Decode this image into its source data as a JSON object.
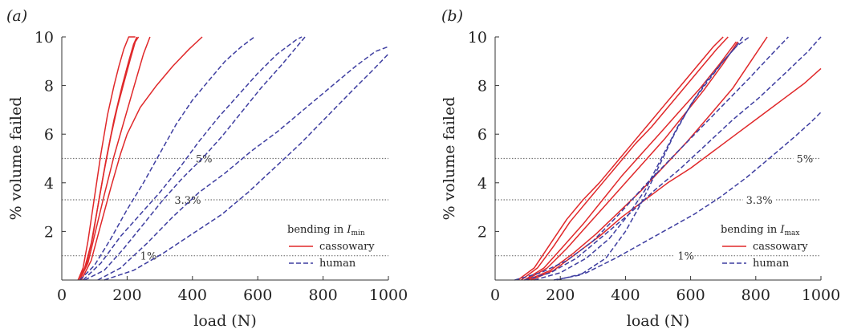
{
  "figure": {
    "panels": [
      {
        "id": "a",
        "label": "(a)"
      },
      {
        "id": "b",
        "label": "(b)"
      }
    ]
  },
  "chart_data": [
    {
      "type": "line",
      "panel": "(a)",
      "xlabel": "load (N)",
      "ylabel": "% volume failed",
      "xlim": [
        0,
        1000
      ],
      "ylim": [
        0,
        10
      ],
      "xticks": [
        "0",
        "200",
        "400",
        "600",
        "800",
        "1000"
      ],
      "yticks": [
        "2",
        "4",
        "6",
        "8",
        "10"
      ],
      "grid": false,
      "legend": {
        "title_prefix": "bending in ",
        "title_var": "I",
        "title_sub": "min",
        "placement": "bottom-right",
        "entries": [
          {
            "label": "cassowary",
            "color": "#e0282a",
            "dash": "solid"
          },
          {
            "label": "human",
            "color": "#3d3da0",
            "dash": "dashed"
          }
        ]
      },
      "reference_lines": [
        {
          "y": 5,
          "label": "5%",
          "label_x": 410
        },
        {
          "y": 3.3,
          "label": "3.3%",
          "label_x": 345
        },
        {
          "y": 1,
          "label": "1%",
          "label_x": 240
        }
      ],
      "series": [
        {
          "group": "cassowary",
          "x": [
            50,
            65,
            80,
            100,
            120,
            140,
            160,
            175,
            190,
            205,
            215,
            225
          ],
          "y": [
            0,
            0.5,
            1.6,
            3.4,
            5.2,
            6.8,
            8.0,
            8.8,
            9.5,
            10.0,
            10.0,
            10.0
          ]
        },
        {
          "group": "cassowary",
          "x": [
            50,
            70,
            90,
            110,
            130,
            150,
            170,
            190,
            210,
            225,
            235
          ],
          "y": [
            0,
            0.5,
            1.5,
            3.0,
            4.5,
            5.9,
            7.1,
            8.1,
            9.1,
            9.8,
            10.0
          ]
        },
        {
          "group": "cassowary",
          "x": [
            55,
            75,
            95,
            115,
            135,
            160,
            185,
            205,
            220,
            230
          ],
          "y": [
            0,
            0.6,
            1.8,
            3.4,
            4.9,
            6.6,
            8.0,
            9.0,
            9.7,
            10.0
          ]
        },
        {
          "group": "cassowary",
          "x": [
            55,
            80,
            105,
            130,
            160,
            190,
            220,
            250,
            270
          ],
          "y": [
            0,
            0.7,
            2.1,
            3.5,
            5.1,
            6.5,
            7.9,
            9.3,
            10.0
          ]
        },
        {
          "group": "cassowary",
          "x": [
            60,
            90,
            120,
            150,
            180,
            200,
            240,
            290,
            340,
            390,
            430
          ],
          "y": [
            0,
            0.8,
            2.3,
            3.8,
            5.2,
            6.0,
            7.1,
            8.0,
            8.8,
            9.5,
            10.0
          ]
        },
        {
          "group": "human",
          "x": [
            55,
            100,
            150,
            200,
            250,
            300,
            350,
            400,
            450,
            500,
            550,
            590
          ],
          "y": [
            0,
            0.6,
            1.7,
            2.9,
            4.0,
            5.2,
            6.4,
            7.4,
            8.2,
            9.0,
            9.6,
            10.0
          ]
        },
        {
          "group": "human",
          "x": [
            65,
            120,
            180,
            240,
            300,
            360,
            420,
            480,
            540,
            600,
            660,
            720,
            735
          ],
          "y": [
            0,
            0.7,
            1.8,
            2.7,
            3.6,
            4.6,
            5.7,
            6.7,
            7.6,
            8.5,
            9.3,
            9.9,
            10.0
          ]
        },
        {
          "group": "human",
          "x": [
            70,
            130,
            190,
            250,
            310,
            370,
            430,
            490,
            550,
            610,
            670,
            720,
            745
          ],
          "y": [
            0,
            0.4,
            1.3,
            2.3,
            3.3,
            4.2,
            5.0,
            5.9,
            6.9,
            7.9,
            8.8,
            9.6,
            10.0
          ]
        },
        {
          "group": "human",
          "x": [
            110,
            180,
            260,
            340,
            420,
            500,
            580,
            660,
            740,
            820,
            900,
            960,
            1000
          ],
          "y": [
            0,
            0.5,
            1.5,
            2.6,
            3.6,
            4.4,
            5.3,
            6.1,
            7.0,
            7.9,
            8.8,
            9.4,
            9.6
          ]
        },
        {
          "group": "human",
          "x": [
            130,
            220,
            310,
            400,
            490,
            570,
            650,
            730,
            810,
            890,
            950,
            1000
          ],
          "y": [
            0,
            0.4,
            1.1,
            1.9,
            2.7,
            3.6,
            4.6,
            5.6,
            6.7,
            7.8,
            8.6,
            9.3
          ]
        }
      ]
    },
    {
      "type": "line",
      "panel": "(b)",
      "xlabel": "load (N)",
      "ylabel": "% volume failed",
      "xlim": [
        0,
        1000
      ],
      "ylim": [
        0,
        10
      ],
      "xticks": [
        "0",
        "200",
        "400",
        "600",
        "800",
        "1000"
      ],
      "yticks": [
        "2",
        "4",
        "6",
        "8",
        "10"
      ],
      "grid": false,
      "legend": {
        "title_prefix": "bending in ",
        "title_var": "I",
        "title_sub": "max",
        "placement": "bottom-right",
        "entries": [
          {
            "label": "cassowary",
            "color": "#e0282a",
            "dash": "solid"
          },
          {
            "label": "human",
            "color": "#3d3da0",
            "dash": "dashed"
          }
        ]
      },
      "reference_lines": [
        {
          "y": 5,
          "label": "5%",
          "label_x": 925
        },
        {
          "y": 3.3,
          "label": "3.3%",
          "label_x": 770
        },
        {
          "y": 1,
          "label": "1%",
          "label_x": 560
        }
      ],
      "series": [
        {
          "group": "cassowary",
          "x": [
            70,
            120,
            170,
            220,
            270,
            320,
            370,
            420,
            470,
            520,
            570,
            620,
            670,
            700
          ],
          "y": [
            0,
            0.5,
            1.5,
            2.5,
            3.3,
            4.0,
            4.8,
            5.6,
            6.4,
            7.2,
            8.0,
            8.8,
            9.6,
            10.0
          ]
        },
        {
          "group": "cassowary",
          "x": [
            80,
            130,
            180,
            230,
            280,
            330,
            380,
            430,
            480,
            530,
            580,
            630,
            680,
            715
          ],
          "y": [
            0,
            0.5,
            1.4,
            2.4,
            3.2,
            4.0,
            4.8,
            5.6,
            6.3,
            7.1,
            7.9,
            8.7,
            9.5,
            10.0
          ]
        },
        {
          "group": "cassowary",
          "x": [
            90,
            150,
            210,
            270,
            330,
            390,
            450,
            510,
            570,
            630,
            690,
            740
          ],
          "y": [
            0,
            0.5,
            1.4,
            2.3,
            3.3,
            4.3,
            5.2,
            6.1,
            7.0,
            7.9,
            8.9,
            9.8
          ]
        },
        {
          "group": "cassowary",
          "x": [
            95,
            160,
            220,
            280,
            340,
            400,
            460,
            520,
            580,
            640,
            700,
            745
          ],
          "y": [
            0,
            0.5,
            1.3,
            2.2,
            3.1,
            4.0,
            4.9,
            5.8,
            6.8,
            7.8,
            8.9,
            9.8
          ]
        },
        {
          "group": "cassowary",
          "x": [
            100,
            170,
            240,
            310,
            380,
            450,
            520,
            590,
            660,
            730,
            790,
            835
          ],
          "y": [
            0,
            0.4,
            1.1,
            1.9,
            2.8,
            3.7,
            4.7,
            5.7,
            6.8,
            7.9,
            9.1,
            10.0
          ]
        },
        {
          "group": "cassowary",
          "x": [
            110,
            180,
            250,
            320,
            390,
            460,
            530,
            600,
            670,
            740,
            810,
            880,
            950,
            1000
          ],
          "y": [
            0,
            0.4,
            1.1,
            1.8,
            2.6,
            3.3,
            4.0,
            4.6,
            5.3,
            6.0,
            6.7,
            7.4,
            8.1,
            8.7
          ]
        },
        {
          "group": "human",
          "x": [
            120,
            200,
            280,
            350,
            410,
            460,
            510,
            560,
            610,
            660,
            700,
            740,
            760
          ],
          "y": [
            0,
            0.3,
            0.9,
            1.7,
            2.7,
            3.7,
            5.0,
            6.3,
            7.4,
            8.3,
            9.0,
            9.6,
            10.0
          ]
        },
        {
          "group": "human",
          "x": [
            180,
            260,
            340,
            400,
            450,
            500,
            550,
            600,
            650,
            700,
            740,
            780
          ],
          "y": [
            0,
            0.2,
            0.9,
            2.0,
            3.2,
            4.6,
            6.0,
            7.2,
            8.2,
            9.0,
            9.6,
            10.0
          ]
        },
        {
          "group": "human",
          "x": [
            60,
            140,
            220,
            300,
            380,
            460,
            540,
            620,
            700,
            780,
            850,
            900
          ],
          "y": [
            0,
            0.3,
            0.8,
            1.6,
            2.7,
            3.9,
            5.0,
            6.1,
            7.2,
            8.3,
            9.3,
            10.0
          ]
        },
        {
          "group": "human",
          "x": [
            90,
            170,
            250,
            330,
            410,
            490,
            570,
            650,
            730,
            810,
            890,
            960,
            1000
          ],
          "y": [
            0,
            0.3,
            0.9,
            1.8,
            2.7,
            3.7,
            4.6,
            5.6,
            6.6,
            7.5,
            8.5,
            9.4,
            10.0
          ]
        },
        {
          "group": "human",
          "x": [
            190,
            280,
            370,
            450,
            530,
            610,
            690,
            770,
            850,
            920,
            970,
            1000
          ],
          "y": [
            0,
            0.3,
            0.9,
            1.5,
            2.1,
            2.7,
            3.4,
            4.2,
            5.1,
            5.9,
            6.5,
            6.9
          ]
        }
      ]
    }
  ]
}
